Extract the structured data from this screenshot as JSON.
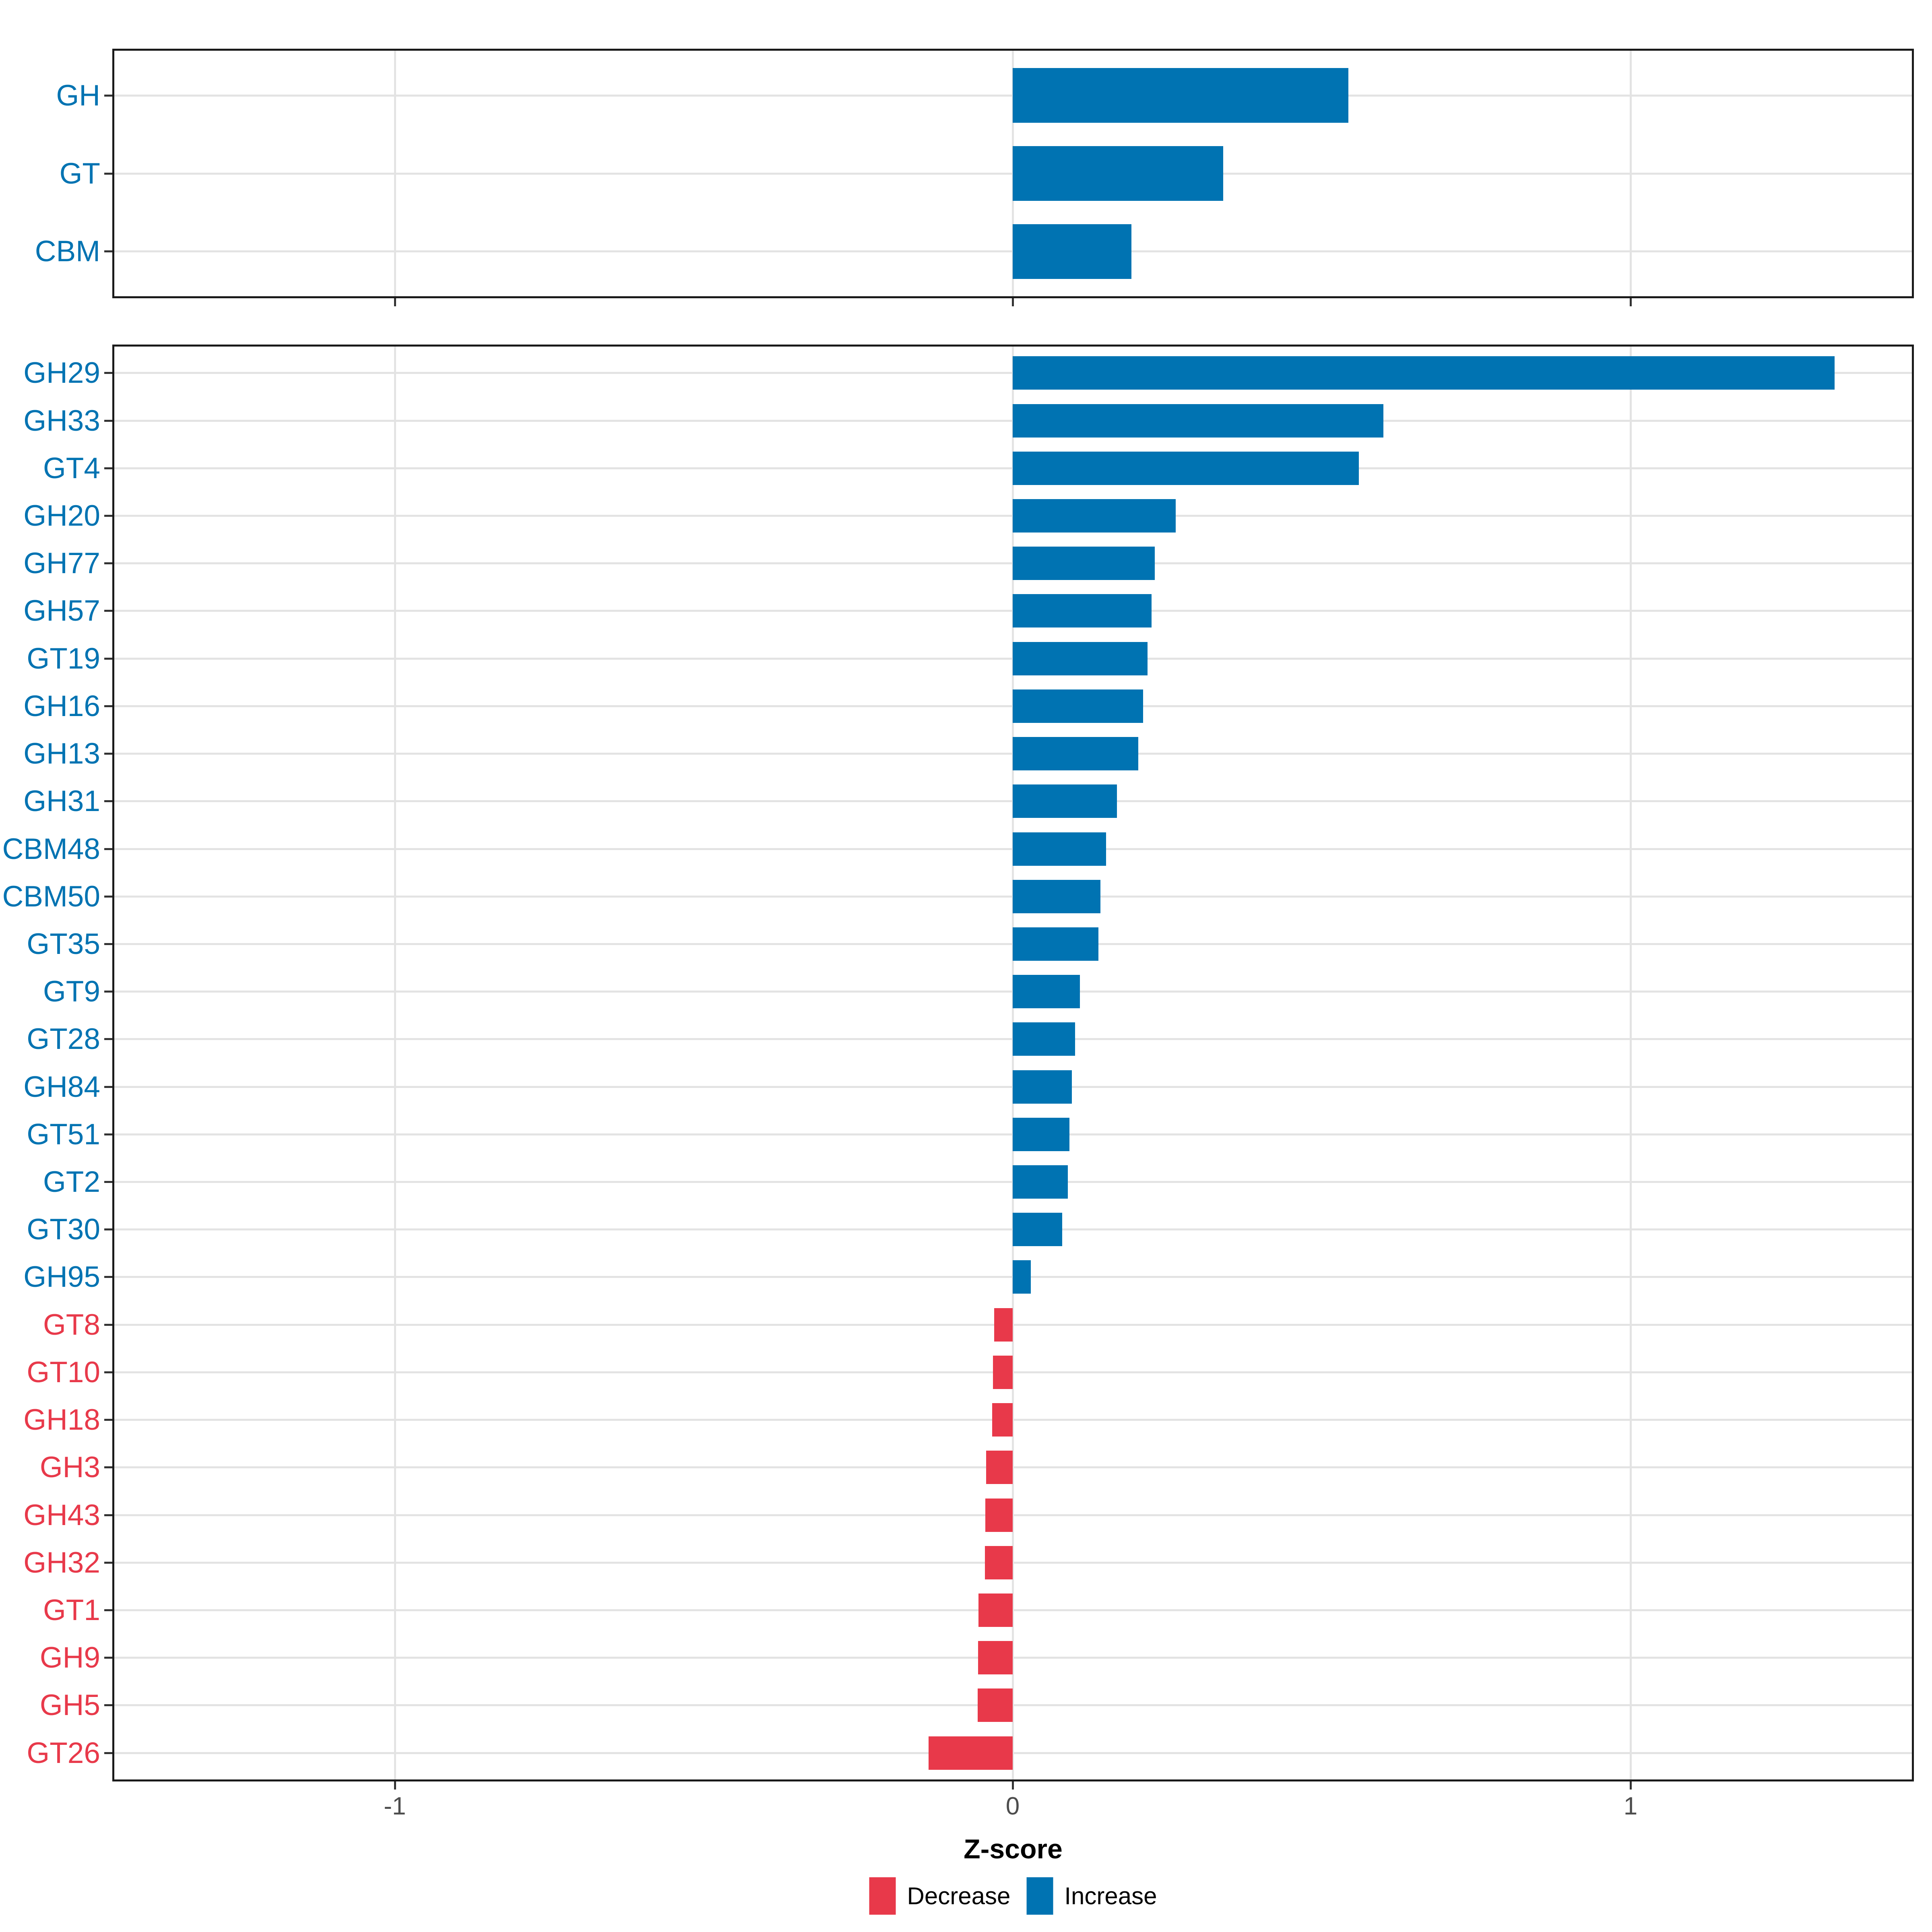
{
  "xlabel": "Z-score",
  "x_tick_labels": [
    "-1",
    "0",
    "1"
  ],
  "colors": {
    "increase": "#0073B2",
    "decrease": "#E8394A",
    "axis_text": "#4D4D4D",
    "tick_mark": "#333333",
    "grid": "#E3E3E3",
    "panel_border": "#1A1A1A",
    "background": "#FFFFFF"
  },
  "legend": {
    "position": "bottom",
    "items": [
      {
        "label": "Decrease",
        "color": "#E8394A"
      },
      {
        "label": "Increase",
        "color": "#0073B2"
      }
    ]
  },
  "chart_data": [
    {
      "type": "bar",
      "orientation": "horizontal",
      "panel": "top-category-summary",
      "categories": [
        "GH",
        "GT",
        "CBM"
      ],
      "values": [
        0.543,
        0.341,
        0.192
      ],
      "xlabel": "Z-score",
      "xlim": [
        -1.457,
        1.457
      ],
      "x_ticks": [
        -1,
        0,
        1
      ],
      "grid": "major-only",
      "bar_color_rule": "blue #0073B2 if value >= 0 (Increase), red #E8394A if value < 0 (Decrease); category label colored the same"
    },
    {
      "type": "bar",
      "orientation": "horizontal",
      "panel": "bottom-family-detail",
      "categories": [
        "GH29",
        "GH33",
        "GT4",
        "GH20",
        "GH77",
        "GH57",
        "GT19",
        "GH16",
        "GH13",
        "GH31",
        "CBM48",
        "CBM50",
        "GT35",
        "GT9",
        "GT28",
        "GH84",
        "GT51",
        "GT2",
        "GT30",
        "GH95",
        "GT8",
        "GT10",
        "GH18",
        "GH3",
        "GH43",
        "GH32",
        "GT1",
        "GH9",
        "GH5",
        "GT26"
      ],
      "values": [
        1.33,
        0.6,
        0.56,
        0.264,
        0.23,
        0.225,
        0.218,
        0.211,
        0.203,
        0.169,
        0.151,
        0.142,
        0.139,
        0.109,
        0.101,
        0.096,
        0.092,
        0.089,
        0.08,
        0.029,
        -0.03,
        -0.032,
        -0.033,
        -0.043,
        -0.0445,
        -0.045,
        -0.0555,
        -0.056,
        -0.0565,
        -0.136
      ],
      "xlabel": "Z-score",
      "xlim": [
        -1.457,
        1.457
      ],
      "x_ticks": [
        -1,
        0,
        1
      ],
      "grid": "major-only",
      "bar_color_rule": "blue #0073B2 if value >= 0 (Increase), red #E8394A if value < 0 (Decrease); category label colored the same"
    }
  ]
}
